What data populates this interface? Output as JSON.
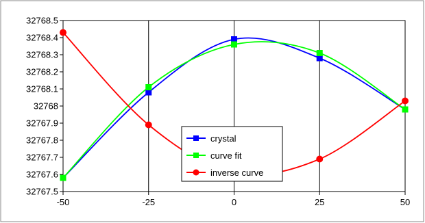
{
  "chart_data": {
    "type": "line",
    "title": "",
    "xlabel": "",
    "ylabel": "",
    "x": [
      -50,
      -25,
      0,
      25,
      50
    ],
    "xlim": [
      -50,
      50
    ],
    "ylim": [
      32767.5,
      32768.5
    ],
    "x_ticks": [
      -50,
      -25,
      0,
      25,
      50
    ],
    "x_tick_labels": [
      "-50",
      "-25",
      "0",
      "25",
      "50"
    ],
    "y_ticks": [
      32767.5,
      32767.6,
      32767.7,
      32767.8,
      32767.9,
      32768.0,
      32768.1,
      32768.2,
      32768.3,
      32768.4,
      32768.5
    ],
    "y_tick_labels": [
      "32767.5",
      "32767.6",
      "32767.7",
      "32767.8",
      "32767.9",
      "32768",
      "32768.1",
      "32768.2",
      "32768.3",
      "32768.4",
      "32768.5"
    ],
    "grid": "vertical",
    "legend_position": "center-bottom",
    "series": [
      {
        "name": "crystal",
        "color": "#0000ff",
        "marker": "square",
        "values": [
          32767.58,
          32768.08,
          32768.39,
          32768.28,
          32767.98
        ]
      },
      {
        "name": "curve fit",
        "color": "#00ff00",
        "marker": "square",
        "values": [
          32767.58,
          32768.11,
          32768.36,
          32768.31,
          32767.98
        ]
      },
      {
        "name": "inverse curve",
        "color": "#ff0000",
        "marker": "circle",
        "values": [
          32768.43,
          32767.89,
          32767.61,
          32767.69,
          32768.03
        ]
      }
    ]
  }
}
